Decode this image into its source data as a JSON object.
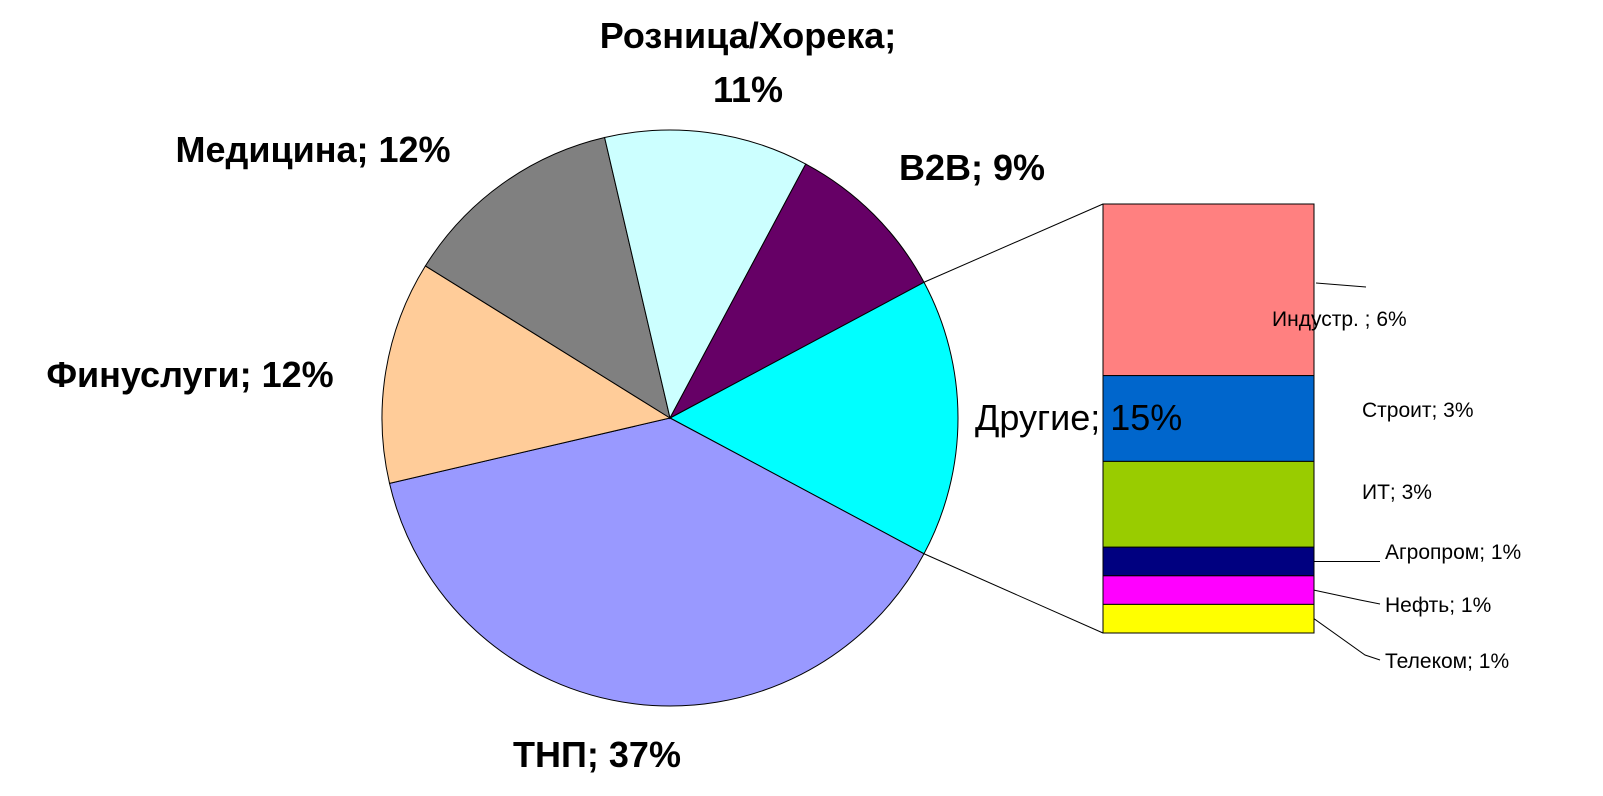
{
  "chart_data": {
    "type": "pie-of-bar",
    "values": [
      15,
      37,
      12,
      12,
      11,
      9
    ],
    "value_labels": [
      "Другие; 15%",
      "ТНП; 37%",
      "Финуслуги; 12%",
      "Медицина; 12%",
      "Розница/Хорека;\n11%",
      "B2B; 9%"
    ],
    "colors": [
      "#00ffff",
      "#9999ff",
      "#ffcc99",
      "#808080",
      "#ccffff",
      "#660066"
    ],
    "breakdown": {
      "values": [
        6,
        3,
        3,
        1,
        1,
        1
      ],
      "value_labels": [
        "Индустр. ; 6%",
        "Строит; 3%",
        "ИТ; 3%",
        "Агропром; 1%",
        "Нефть; 1%",
        "Телеком; 1%"
      ],
      "colors": [
        "#ff8080",
        "#0066cc",
        "#99cc00",
        "#000080",
        "#ff00ff",
        "#ffff00"
      ]
    }
  }
}
